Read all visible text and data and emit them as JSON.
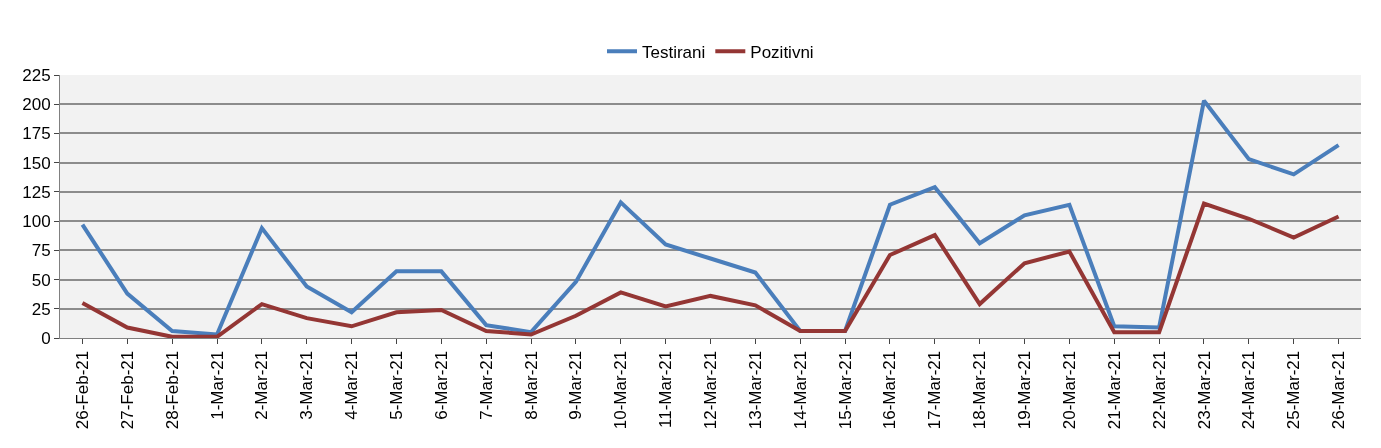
{
  "chart_data": {
    "type": "line",
    "categories": [
      "26-Feb-21",
      "27-Feb-21",
      "28-Feb-21",
      "1-Mar-21",
      "2-Mar-21",
      "3-Mar-21",
      "4-Mar-21",
      "5-Mar-21",
      "6-Mar-21",
      "7-Mar-21",
      "8-Mar-21",
      "9-Mar-21",
      "10-Mar-21",
      "11-Mar-21",
      "12-Mar-21",
      "13-Mar-21",
      "14-Mar-21",
      "15-Mar-21",
      "16-Mar-21",
      "17-Mar-21",
      "18-Mar-21",
      "19-Mar-21",
      "20-Mar-21",
      "21-Mar-21",
      "22-Mar-21",
      "23-Mar-21",
      "24-Mar-21",
      "25-Mar-21",
      "26-Mar-21"
    ],
    "series": [
      {
        "name": "Testirani",
        "color": "#4a7ebb",
        "values": [
          97,
          38,
          6,
          3,
          94,
          44,
          22,
          57,
          57,
          11,
          5,
          48,
          116,
          80,
          68,
          56,
          6,
          6,
          114,
          129,
          81,
          105,
          114,
          10,
          9,
          203,
          153,
          140,
          165
        ]
      },
      {
        "name": "Pozitivni",
        "color": "#943634",
        "values": [
          30,
          9,
          1,
          1,
          29,
          17,
          10,
          22,
          24,
          6,
          3,
          19,
          39,
          27,
          36,
          28,
          6,
          6,
          71,
          88,
          29,
          64,
          74,
          5,
          5,
          115,
          102,
          86,
          104
        ]
      }
    ],
    "ylim": [
      0,
      225
    ],
    "yticks": [
      0,
      25,
      50,
      75,
      100,
      125,
      150,
      175,
      200,
      225
    ],
    "grid": "y",
    "legend": "top",
    "marker": "none",
    "line_style": "solid"
  }
}
